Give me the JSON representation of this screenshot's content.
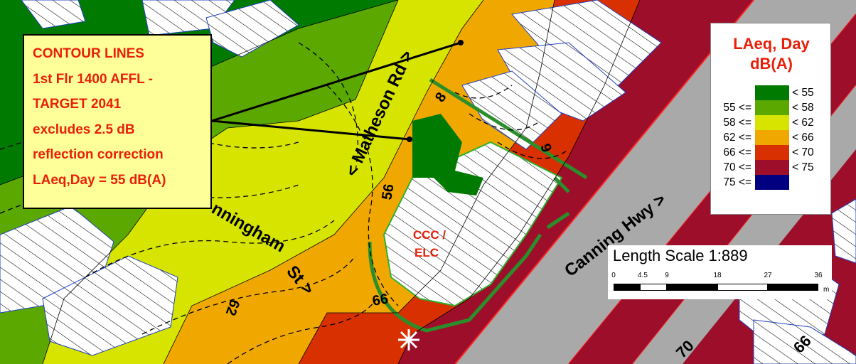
{
  "note": {
    "lines": [
      "CONTOUR LINES",
      "1st Flr 1400 AFFL -",
      "TARGET 2041",
      "excludes 2.5 dB",
      "reflection correction",
      "LAeq,Day = 55 dB(A)"
    ]
  },
  "legend": {
    "title_line1": "LAeq, Day",
    "title_line2": "dB(A)",
    "rows": [
      {
        "low": "",
        "high": "< 55",
        "color": "#007a00"
      },
      {
        "low": "55 <=",
        "high": "< 58",
        "color": "#5aa800"
      },
      {
        "low": "58 <=",
        "high": "< 62",
        "color": "#d6e400"
      },
      {
        "low": "62 <=",
        "high": "< 66",
        "color": "#f0a800"
      },
      {
        "low": "66 <=",
        "high": "< 70",
        "color": "#d83000"
      },
      {
        "low": "70 <=",
        "high": "< 75",
        "color": "#9c0e2a"
      },
      {
        "low": "75 <=",
        "high": "",
        "color": "#000080"
      }
    ]
  },
  "scale": {
    "title": "Length Scale 1:889",
    "ticks": [
      "0",
      "4.5",
      "9",
      "18",
      "27",
      "36"
    ],
    "unit": "m"
  },
  "labels": {
    "road_matheson": "< Matheson Rd >",
    "road_cunningham": "nningham",
    "road_st": "St >",
    "road_canning": "Canning Hwy >",
    "building": "CCC /\nELC",
    "contour_56": "56",
    "contour_62": "62",
    "contour_8": "8",
    "contour_9": "9",
    "contour_66": "66",
    "contour_70": "70"
  },
  "colors": {
    "lt55": "#007a00",
    "c55_58": "#5aa800",
    "c58_62": "#d6e400",
    "c62_66": "#f0a800",
    "c66_70": "#d83000",
    "c70_75": "#9c0e2a",
    "c75": "#000080",
    "road": "#a9a9a9",
    "annotation_red": "#e8200a"
  }
}
